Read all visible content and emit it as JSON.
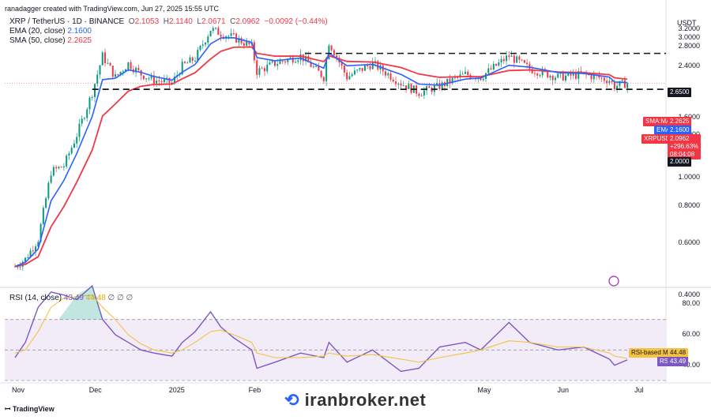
{
  "header": {
    "created_by": "ranadagger created with TradingView.com, Jun 27, 2025 15:55 UTC",
    "symbol_line": "XRP / TetherUS · 1D · BINANCE",
    "ohlc": {
      "o_label": "O",
      "o": "2.1053",
      "h_label": "H",
      "h": "2.1140",
      "l_label": "L",
      "l": "2.0671",
      "c_label": "C",
      "c": "2.0962",
      "change": "−0.0092 (−0.44%)"
    },
    "ema_label": "EMA (20, close)",
    "ema_value": "2.1600",
    "sma_label": "SMA (50, close)",
    "sma_value": "2.2625",
    "rsi_label": "RSI (14, close)",
    "rsi_value": "43.49",
    "rsi_ma_value": "44.48",
    "rsi_extra": "∅ ∅ ∅"
  },
  "price_axis": {
    "unit": "USDT",
    "ticks": [
      "3.2000",
      "3.0000",
      "2.8000",
      "2.4000",
      "1.6000",
      "1.4000",
      "1.2000",
      "1.0000",
      "0.8000",
      "0.6000",
      "0.4000"
    ]
  },
  "price_tags": {
    "res": "2.6500",
    "sma": {
      "label": "SMA:MA",
      "value": "2.2625"
    },
    "ema": {
      "label": "EMA",
      "value": "2.1600"
    },
    "last": {
      "label": "XRPUSDT",
      "value": "2.0962",
      "pct": "+296.63%",
      "time": "08:04:08"
    },
    "sup": "2.0000"
  },
  "rsi_axis": {
    "ticks": [
      "80.00",
      "60.00",
      "40.00"
    ],
    "ma_label": "RSI-based MA",
    "ma_value": "44.48",
    "rsi_label": "RSI",
    "rsi_value": "43.49"
  },
  "time_axis": [
    "Nov",
    "Dec",
    "2025",
    "Feb",
    "May",
    "Jun",
    "Jul"
  ],
  "branding": {
    "tv": "TradingView",
    "watermark": "iranbroker.net"
  },
  "colors": {
    "up": "#089981",
    "down": "#f23645",
    "ema": "#2962ff",
    "sma": "#f23645",
    "rsi": "#7e57c2",
    "rsi_ma": "#f5c242",
    "band": "#ede7f6"
  },
  "chart_data": [
    {
      "type": "candlestick",
      "title": "XRP / TetherUS · 1D · BINANCE",
      "y_scale": "log",
      "ylim": [
        0.43,
        3.6
      ],
      "x": [
        "2024-11-01",
        "2024-11-05",
        "2024-11-10",
        "2024-11-15",
        "2024-11-20",
        "2024-11-25",
        "2024-12-01",
        "2024-12-05",
        "2024-12-10",
        "2024-12-15",
        "2024-12-20",
        "2024-12-25",
        "2025-01-01",
        "2025-01-05",
        "2025-01-10",
        "2025-01-16",
        "2025-01-20",
        "2025-01-25",
        "2025-02-01",
        "2025-02-03",
        "2025-02-10",
        "2025-02-20",
        "2025-03-01",
        "2025-03-03",
        "2025-03-10",
        "2025-03-20",
        "2025-03-31",
        "2025-04-07",
        "2025-04-15",
        "2025-04-25",
        "2025-05-01",
        "2025-05-12",
        "2025-05-20",
        "2025-05-31",
        "2025-06-10",
        "2025-06-20",
        "2025-06-22",
        "2025-06-27"
      ],
      "close": [
        0.5,
        0.53,
        0.62,
        1.05,
        1.1,
        1.4,
        1.95,
        2.6,
        2.2,
        2.45,
        2.25,
        2.15,
        2.1,
        2.4,
        2.55,
        3.2,
        3.1,
        3.0,
        2.8,
        2.3,
        2.45,
        2.6,
        2.2,
        2.9,
        2.2,
        2.45,
        2.1,
        1.95,
        2.05,
        2.25,
        2.2,
        2.6,
        2.35,
        2.2,
        2.25,
        2.15,
        2.05,
        2.1
      ],
      "lines": [
        {
          "name": "EMA (20, close)",
          "value_last": 2.16
        },
        {
          "name": "SMA (50, close)",
          "value_last": 2.2625
        }
      ],
      "levels": [
        2.65,
        2.0
      ]
    },
    {
      "type": "line",
      "title": "RSI (14, close)",
      "ylim": [
        30,
        90
      ],
      "series": [
        {
          "name": "RSI",
          "values": [
            45,
            55,
            78,
            88,
            86,
            83,
            92,
            70,
            60,
            55,
            50,
            48,
            46,
            55,
            62,
            75,
            65,
            58,
            50,
            38,
            42,
            48,
            45,
            55,
            42,
            50,
            36,
            38,
            52,
            55,
            50,
            68,
            55,
            50,
            52,
            44,
            40,
            43.49
          ]
        },
        {
          "name": "RSI-based MA",
          "values": [
            48,
            50,
            62,
            78,
            84,
            85,
            86,
            78,
            70,
            60,
            54,
            50,
            48,
            50,
            55,
            62,
            63,
            60,
            55,
            48,
            45,
            45,
            46,
            48,
            46,
            47,
            44,
            42,
            45,
            48,
            50,
            56,
            55,
            52,
            52,
            48,
            46,
            44.48
          ]
        }
      ],
      "bands": [
        70,
        30
      ]
    }
  ]
}
